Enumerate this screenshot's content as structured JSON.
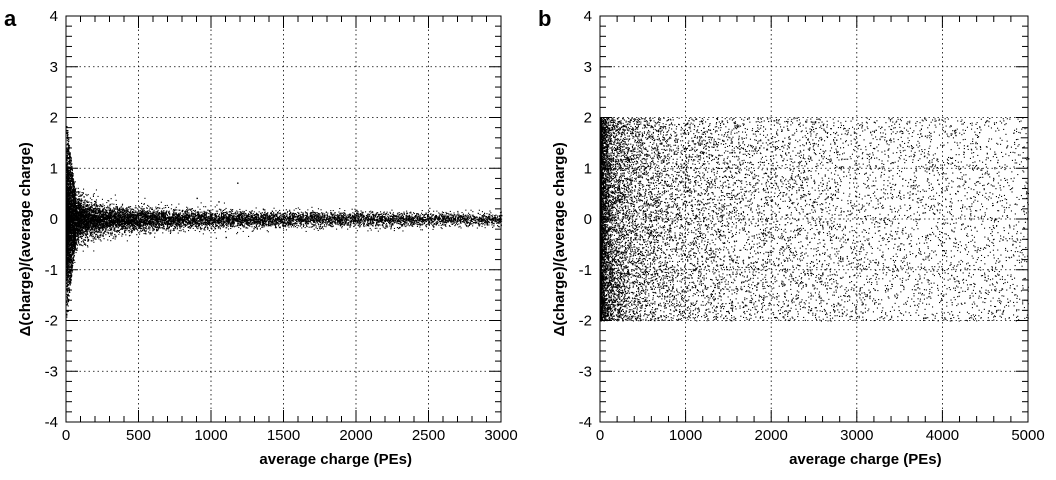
{
  "chart_data": [
    {
      "panel": "a",
      "type": "scatter",
      "xlabel": "average charge (PEs)",
      "ylabel": "Δ(charge)/(average charge)",
      "xlim": [
        0,
        3000
      ],
      "ylim": [
        -4,
        4
      ],
      "xticks": [
        0,
        500,
        1000,
        1500,
        2000,
        2500,
        3000
      ],
      "yticks": [
        -4,
        -3,
        -2,
        -1,
        0,
        1,
        2,
        3,
        4
      ],
      "xtick_labels": [
        "0",
        "500",
        "1000",
        "1500",
        "2000",
        "2500",
        "3000"
      ],
      "ytick_labels": [
        "-4",
        "-3",
        "-2",
        "-1",
        "0",
        "1",
        "2",
        "3",
        "4"
      ],
      "grid": true,
      "marker_color": "#000000",
      "points": [
        [
          5,
          1.7
        ],
        [
          8,
          1.5
        ],
        [
          10,
          -1.8
        ],
        [
          12,
          -1.6
        ],
        [
          15,
          1.3
        ],
        [
          18,
          -1.4
        ],
        [
          20,
          1.1
        ],
        [
          25,
          -1.1
        ],
        [
          30,
          0.9
        ],
        [
          35,
          -0.95
        ],
        [
          40,
          0.8
        ],
        [
          50,
          -0.8
        ],
        [
          60,
          0.6
        ],
        [
          70,
          -0.6
        ],
        [
          80,
          0.55
        ],
        [
          100,
          -0.5
        ],
        [
          120,
          0.45
        ],
        [
          150,
          -0.4
        ],
        [
          200,
          0.35
        ],
        [
          250,
          -0.32
        ],
        [
          300,
          0.3
        ],
        [
          400,
          -0.25
        ],
        [
          500,
          0.25
        ],
        [
          600,
          -0.2
        ],
        [
          800,
          0.18
        ],
        [
          1000,
          -0.18
        ],
        [
          1200,
          0.15
        ],
        [
          1500,
          -0.12
        ],
        [
          2000,
          0.12
        ],
        [
          2500,
          -0.1
        ],
        [
          3000,
          0.08
        ],
        [
          900,
          0.42
        ],
        [
          1050,
          0.35
        ],
        [
          1180,
          0.72
        ],
        [
          1100,
          -0.35
        ],
        [
          780,
          0.1
        ],
        [
          650,
          -0.05
        ],
        [
          1400,
          0.05
        ],
        [
          1750,
          -0.05
        ],
        [
          2200,
          0.02
        ],
        [
          2700,
          0.05
        ]
      ]
    },
    {
      "panel": "b",
      "type": "scatter",
      "xlabel": "average charge (PEs)",
      "ylabel": "Δ(charge)/(average charge)",
      "xlim": [
        0,
        5000
      ],
      "ylim": [
        -4,
        4
      ],
      "xticks": [
        0,
        1000,
        2000,
        3000,
        4000,
        5000
      ],
      "yticks": [
        -4,
        -3,
        -2,
        -1,
        0,
        1,
        2,
        3,
        4
      ],
      "xtick_labels": [
        "0",
        "1000",
        "2000",
        "3000",
        "4000",
        "5000"
      ],
      "ytick_labels": [
        "-4",
        "-3",
        "-2",
        "-1",
        "0",
        "1",
        "2",
        "3",
        "4"
      ],
      "grid": true,
      "marker_color": "#000000",
      "points": [
        [
          20,
          1.9
        ],
        [
          40,
          -1.9
        ],
        [
          60,
          1.5
        ],
        [
          80,
          -1.4
        ],
        [
          100,
          0.8
        ],
        [
          120,
          -0.5
        ],
        [
          150,
          1.2
        ],
        [
          200,
          -1.0
        ],
        [
          250,
          0.4
        ],
        [
          300,
          -1.8
        ],
        [
          350,
          1.7
        ],
        [
          400,
          -0.3
        ],
        [
          500,
          0.9
        ],
        [
          600,
          -1.2
        ],
        [
          700,
          1.8
        ],
        [
          800,
          -0.7
        ],
        [
          900,
          0.2
        ],
        [
          1000,
          -1.6
        ],
        [
          1200,
          1.1
        ],
        [
          1400,
          -0.9
        ],
        [
          1600,
          0.5
        ],
        [
          1800,
          -1.3
        ],
        [
          2000,
          1.6
        ],
        [
          2300,
          -0.2
        ],
        [
          2600,
          0.7
        ],
        [
          2900,
          -1.5
        ],
        [
          3200,
          1.4
        ],
        [
          3500,
          -0.6
        ],
        [
          3800,
          0.3
        ],
        [
          4100,
          -1.1
        ],
        [
          4400,
          1.0
        ],
        [
          4700,
          -0.4
        ],
        [
          5000,
          1.2
        ]
      ]
    }
  ],
  "panel_letters": {
    "a": "a",
    "b": "b"
  }
}
